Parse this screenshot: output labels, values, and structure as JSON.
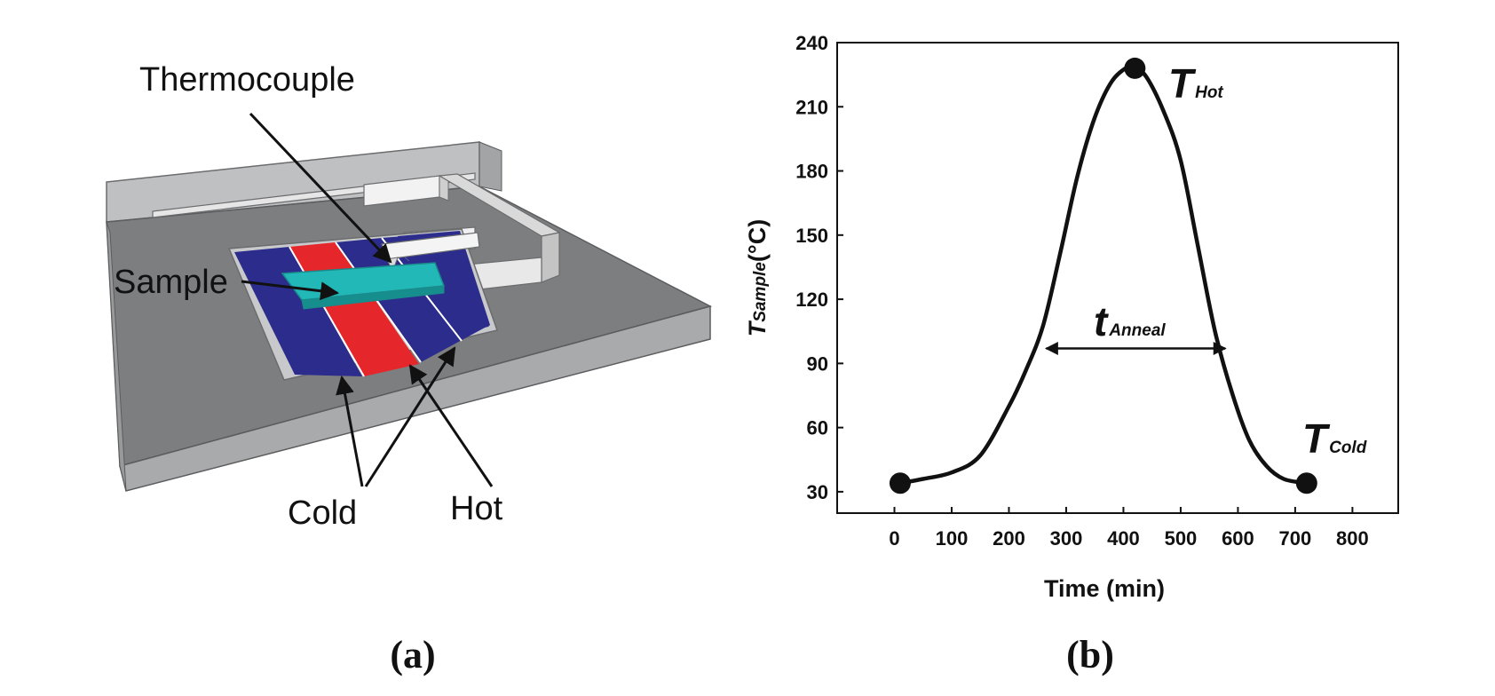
{
  "panel_a": {
    "label": "(a)",
    "callouts": {
      "thermocouple": "Thermocouple",
      "sample": "Sample",
      "cold": "Cold",
      "hot": "Hot"
    },
    "colors": {
      "cold_block": "#2b2c8c",
      "hot_block": "#e5262a",
      "sample": "#22b8b8",
      "base_top": "#7d7e80",
      "frame": "#b4b5b7"
    }
  },
  "panel_b": {
    "label": "(b)",
    "annotations": {
      "t_hot": {
        "main": "T",
        "sub": "Hot"
      },
      "t_cold": {
        "main": "T",
        "sub": "Cold"
      },
      "t_anneal": {
        "main": "t",
        "sub": "Anneal"
      }
    }
  },
  "chart_data": {
    "type": "line",
    "xlabel": "Time (min)",
    "ylabel_main": "T",
    "ylabel_sub": "Sample",
    "ylabel_unit": "(°C)",
    "xlim": [
      -100,
      880
    ],
    "ylim": [
      20,
      240
    ],
    "xticks": [
      0,
      100,
      200,
      300,
      400,
      500,
      600,
      700,
      800
    ],
    "yticks": [
      30,
      60,
      90,
      120,
      150,
      180,
      210,
      240
    ],
    "series": [
      {
        "x": [
          10,
          50,
          100,
          150,
          200,
          230,
          260,
          290,
          320,
          350,
          380,
          410,
          420,
          440,
          470,
          500,
          530,
          560,
          590,
          620,
          650,
          680,
          720
        ],
        "y": [
          34,
          36,
          39,
          47,
          70,
          87,
          108,
          142,
          178,
          205,
          222,
          229,
          228,
          224,
          208,
          185,
          145,
          105,
          76,
          54,
          42,
          36,
          34
        ]
      }
    ],
    "markers": [
      {
        "x": 10,
        "y": 34
      },
      {
        "x": 420,
        "y": 228
      },
      {
        "x": 720,
        "y": 34
      }
    ],
    "anneal_span": {
      "x_start": 265,
      "x_end": 578,
      "y": 97
    }
  }
}
